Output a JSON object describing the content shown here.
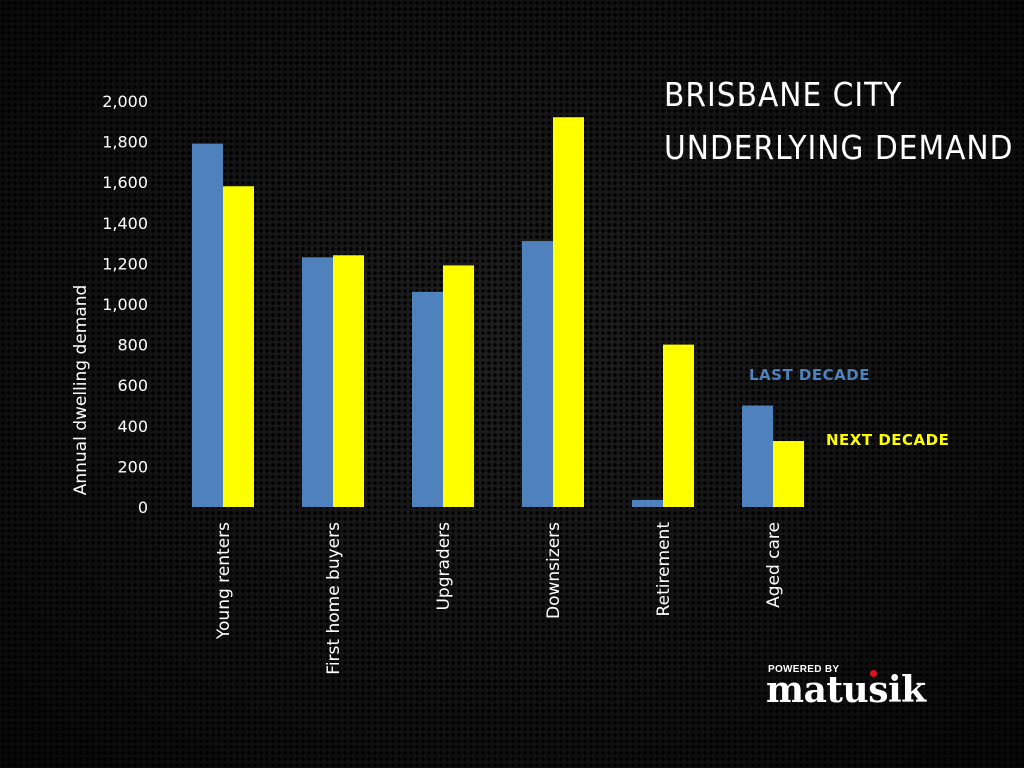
{
  "title": {
    "line1": "BRISBANE  CITY",
    "line2": "UNDERLYING  DEMAND"
  },
  "legend": {
    "last_decade": "LAST DECADE",
    "next_decade": "NEXT DECADE"
  },
  "logo": {
    "top_text": "POWERED BY",
    "main_text": "matusik"
  },
  "colors": {
    "last_decade": "#4f81bd",
    "next_decade": "#ffff00",
    "logo_accent": "#d8151b"
  },
  "chart_data": {
    "type": "bar",
    "categories": [
      "Young renters",
      "First home buyers",
      "Upgraders",
      "Downsizers",
      "Retirement",
      "Aged care"
    ],
    "series": [
      {
        "name": "LAST DECADE",
        "values": [
          1790,
          1230,
          1060,
          1310,
          35,
          500
        ]
      },
      {
        "name": "NEXT DECADE",
        "values": [
          1580,
          1240,
          1190,
          1920,
          800,
          325
        ]
      }
    ],
    "ylabel": "Annual dwelling demand",
    "xlabel": "",
    "ylim": [
      0,
      2000
    ],
    "yticks": [
      0,
      200,
      400,
      600,
      800,
      1000,
      1200,
      1400,
      1600,
      1800,
      2000
    ],
    "ytick_labels": [
      "0",
      "200",
      "400",
      "600",
      "800",
      "1,000",
      "1,200",
      "1,400",
      "1,600",
      "1,800",
      "2,000"
    ],
    "grid": false,
    "legend_position": "right"
  }
}
